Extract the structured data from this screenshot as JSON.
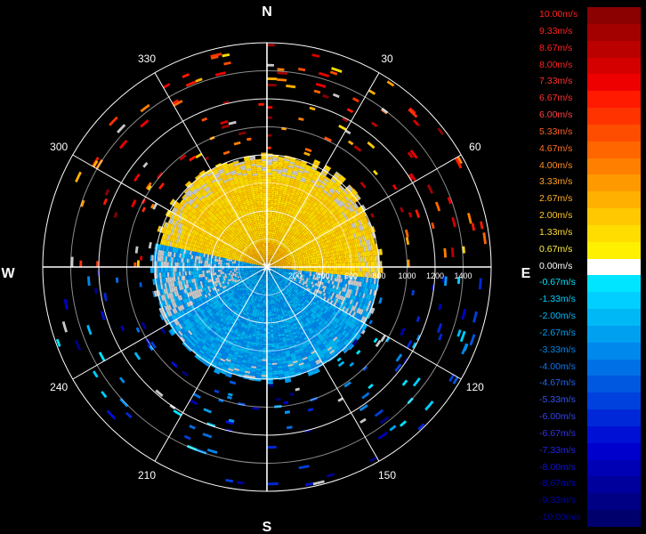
{
  "chart_data": {
    "type": "polar-radar",
    "compass": {
      "north": "N",
      "east": "E",
      "south": "S",
      "west": "W"
    },
    "azimuth_labels": [
      "30",
      "60",
      "120",
      "150",
      "210",
      "240",
      "300",
      "330"
    ],
    "azimuth_degrees": [
      30,
      60,
      120,
      150,
      210,
      240,
      300,
      330
    ],
    "range_ticks": [
      "200",
      "400",
      "600",
      "800",
      "1000",
      "1200",
      "1400"
    ],
    "range_values": [
      200,
      400,
      600,
      800,
      1000,
      1200,
      1400
    ],
    "range_max": 1600,
    "velocity_scale": {
      "labels": [
        "10.00m/s",
        "9.33m/s",
        "8.67m/s",
        "8.00m/s",
        "7.33m/s",
        "6.67m/s",
        "6.00m/s",
        "5.33m/s",
        "4.67m/s",
        "4.00m/s",
        "3.33m/s",
        "2.67m/s",
        "2.00m/s",
        "1.33m/s",
        "0.67m/s",
        "0.00m/s",
        "-0.67m/s",
        "-1.33m/s",
        "-2.00m/s",
        "-2.67m/s",
        "-3.33m/s",
        "-4.00m/s",
        "-4.67m/s",
        "-5.33m/s",
        "-6.00m/s",
        "-6.67m/s",
        "-7.33m/s",
        "-8.00m/s",
        "-8.67m/s",
        "-9.33m/s",
        "-10.00m/s"
      ],
      "colors": [
        "#8b0000",
        "#a30000",
        "#bb0000",
        "#d40000",
        "#ee0000",
        "#ff1a00",
        "#ff3300",
        "#ff4d00",
        "#ff6600",
        "#ff8000",
        "#ff9900",
        "#ffb000",
        "#ffc800",
        "#ffdd00",
        "#fff000",
        "#ffffff",
        "#00e5ff",
        "#00cfff",
        "#00b8f5",
        "#00a0f0",
        "#0088ec",
        "#0070e6",
        "#0058e0",
        "#0040dc",
        "#0028d8",
        "#0010d4",
        "#0000cc",
        "#0000b4",
        "#00009c",
        "#000084",
        "#00006c"
      ],
      "label_colors": [
        "#ff2020",
        "#ff2020",
        "#ff2020",
        "#ff2020",
        "#ff3030",
        "#ff3030",
        "#ff4040",
        "#ff6020",
        "#ff7020",
        "#ff8c20",
        "#ffa020",
        "#ffb020",
        "#ffc820",
        "#ffdd30",
        "#fff040",
        "#ffffff",
        "#00e5ff",
        "#00cfff",
        "#00b8f5",
        "#00a0f0",
        "#0088ec",
        "#1077ee",
        "#2266ee",
        "#3355ee",
        "#3344ee",
        "#3333ee",
        "#2222ee",
        "#1111dd",
        "#0000cc",
        "#0000aa",
        "#000099"
      ]
    }
  }
}
